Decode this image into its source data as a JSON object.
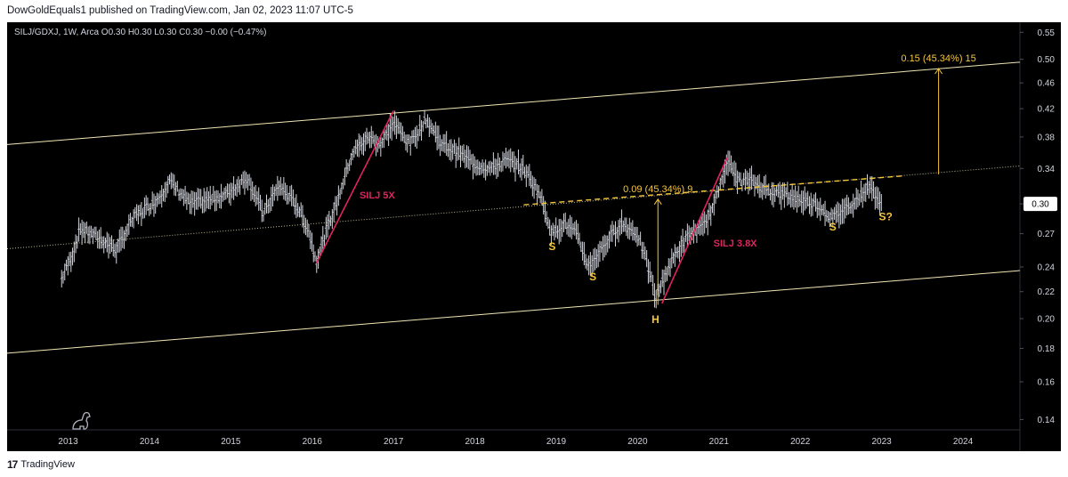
{
  "header": {
    "text": "DowGoldEquals1 published on TradingView.com, Jan 02, 2023 11:07 UTC-5"
  },
  "footer": {
    "logo": "17",
    "brand": "TradingView"
  },
  "colors": {
    "background": "#000000",
    "price": "#d1d4dc",
    "channel": "#f0e6b4",
    "fib": "#f5c53c",
    "impulse": "#e0245e"
  },
  "chart_data": {
    "type": "ohlc",
    "symbol_line": "SILJ/GDXJ, 1W, Arca  O0.30  H0.30  L0.30  C0.30  −0.00 (−0.47%)",
    "scale": "log",
    "ylim": [
      0.135,
      0.57
    ],
    "xlim": [
      2012.25,
      2024.7
    ],
    "y_ticks": [
      "0.55",
      "0.50",
      "0.46",
      "0.42",
      "0.38",
      "0.34",
      "0.30",
      "0.27",
      "0.24",
      "0.22",
      "0.20",
      "0.18",
      "0.16",
      "0.14"
    ],
    "y_tick_values": [
      0.55,
      0.5,
      0.46,
      0.42,
      0.38,
      0.34,
      0.3,
      0.27,
      0.24,
      0.22,
      0.2,
      0.18,
      0.16,
      0.14
    ],
    "x_ticks": [
      "2013",
      "2014",
      "2015",
      "2016",
      "2017",
      "2018",
      "2019",
      "2020",
      "2021",
      "2022",
      "2023",
      "2024"
    ],
    "last_price": "0.30",
    "last_price_value": 0.3,
    "price_path": [
      [
        2012.92,
        0.23
      ],
      [
        2013.05,
        0.25
      ],
      [
        2013.15,
        0.275
      ],
      [
        2013.4,
        0.265
      ],
      [
        2013.6,
        0.255
      ],
      [
        2013.8,
        0.285
      ],
      [
        2014.1,
        0.305
      ],
      [
        2014.25,
        0.325
      ],
      [
        2014.5,
        0.3
      ],
      [
        2014.75,
        0.305
      ],
      [
        2014.95,
        0.31
      ],
      [
        2015.2,
        0.33
      ],
      [
        2015.4,
        0.29
      ],
      [
        2015.6,
        0.32
      ],
      [
        2015.8,
        0.3
      ],
      [
        2015.95,
        0.275
      ],
      [
        2016.05,
        0.245
      ],
      [
        2016.3,
        0.3
      ],
      [
        2016.5,
        0.36
      ],
      [
        2016.7,
        0.38
      ],
      [
        2016.85,
        0.37
      ],
      [
        2017.0,
        0.4
      ],
      [
        2017.2,
        0.37
      ],
      [
        2017.4,
        0.405
      ],
      [
        2017.6,
        0.37
      ],
      [
        2017.8,
        0.36
      ],
      [
        2018.0,
        0.345
      ],
      [
        2018.2,
        0.34
      ],
      [
        2018.4,
        0.35
      ],
      [
        2018.6,
        0.34
      ],
      [
        2018.8,
        0.31
      ],
      [
        2018.95,
        0.27
      ],
      [
        2019.1,
        0.28
      ],
      [
        2019.25,
        0.27
      ],
      [
        2019.4,
        0.24
      ],
      [
        2019.6,
        0.26
      ],
      [
        2019.8,
        0.28
      ],
      [
        2020.0,
        0.27
      ],
      [
        2020.15,
        0.235
      ],
      [
        2020.22,
        0.215
      ],
      [
        2020.35,
        0.235
      ],
      [
        2020.5,
        0.255
      ],
      [
        2020.65,
        0.27
      ],
      [
        2020.8,
        0.275
      ],
      [
        2020.95,
        0.3
      ],
      [
        2021.1,
        0.35
      ],
      [
        2021.25,
        0.325
      ],
      [
        2021.4,
        0.325
      ],
      [
        2021.6,
        0.315
      ],
      [
        2021.8,
        0.31
      ],
      [
        2022.0,
        0.305
      ],
      [
        2022.2,
        0.3
      ],
      [
        2022.4,
        0.285
      ],
      [
        2022.55,
        0.295
      ],
      [
        2022.7,
        0.305
      ],
      [
        2022.85,
        0.32
      ],
      [
        2023.0,
        0.3
      ]
    ],
    "trendlines": [
      {
        "name": "channel-upper",
        "from": [
          2012.25,
          0.37
        ],
        "to": [
          2024.7,
          0.495
        ]
      },
      {
        "name": "channel-lower",
        "from": [
          2012.25,
          0.177
        ],
        "to": [
          2024.7,
          0.237
        ]
      },
      {
        "name": "channel-mid",
        "from": [
          2012.25,
          0.256
        ],
        "to": [
          2024.7,
          0.343
        ]
      },
      {
        "name": "neckline",
        "from": [
          2018.6,
          0.299
        ],
        "to": [
          2023.25,
          0.331
        ]
      },
      {
        "name": "silj-5x",
        "from": [
          2016.05,
          0.243
        ],
        "to": [
          2017.0,
          0.417
        ]
      },
      {
        "name": "silj-3.8x",
        "from": [
          2020.3,
          0.211
        ],
        "to": [
          2021.1,
          0.353
        ]
      }
    ],
    "measures": [
      {
        "label": "0.09 (45.34%) 9",
        "x": 2020.25,
        "from": 0.21,
        "to": 0.305
      },
      {
        "label": "0.15 (45.34%) 15",
        "x": 2023.7,
        "from": 0.333,
        "to": 0.484
      }
    ],
    "annotations": [
      {
        "text": "SILJ 5X",
        "x": 2016.8,
        "y": 0.306,
        "style": "impulse"
      },
      {
        "text": "SILJ 3.8X",
        "x": 2021.2,
        "y": 0.258,
        "style": "impulse"
      },
      {
        "text": "S",
        "x": 2018.95,
        "y": 0.255,
        "style": "pattern"
      },
      {
        "text": "S",
        "x": 2019.45,
        "y": 0.229,
        "style": "pattern"
      },
      {
        "text": "H",
        "x": 2020.22,
        "y": 0.197,
        "style": "pattern"
      },
      {
        "text": "S",
        "x": 2022.4,
        "y": 0.273,
        "style": "pattern"
      },
      {
        "text": "S?",
        "x": 2023.05,
        "y": 0.283,
        "style": "pattern"
      }
    ]
  }
}
